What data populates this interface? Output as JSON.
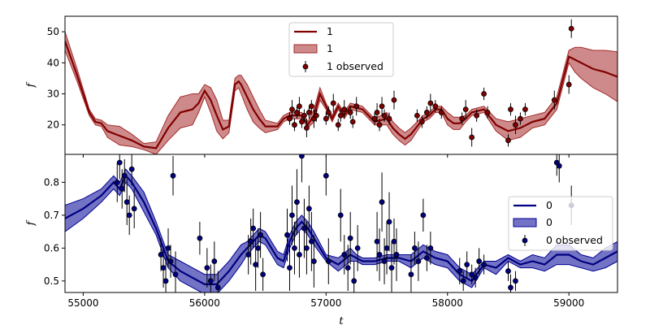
{
  "chart_data": [
    {
      "type": "line",
      "panel": "top",
      "color": "#800000",
      "band_color": "#a52a2a",
      "ylabel": "f",
      "xlabel": "",
      "xlim": [
        54850,
        59400
      ],
      "ylim": [
        10.5,
        55
      ],
      "yticks": [
        20,
        30,
        40,
        50
      ],
      "legend": {
        "placement": "top-center",
        "entries": [
          "1",
          "1",
          "1 observed"
        ]
      },
      "model": {
        "x": [
          54850,
          54950,
          55050,
          55100,
          55150,
          55200,
          55300,
          55400,
          55500,
          55600,
          55700,
          55800,
          55900,
          55950,
          56000,
          56050,
          56100,
          56150,
          56200,
          56250,
          56280,
          56300,
          56350,
          56400,
          56450,
          56500,
          56600,
          56650,
          56700,
          56800,
          56850,
          56900,
          56950,
          57000,
          57050,
          57100,
          57150,
          57200,
          57300,
          57400,
          57500,
          57550,
          57600,
          57650,
          57700,
          57800,
          57850,
          57900,
          57950,
          58000,
          58050,
          58100,
          58150,
          58200,
          58300,
          58400,
          58500,
          58600,
          58700,
          58800,
          58900,
          59000,
          59050,
          59100,
          59200,
          59300,
          59400
        ],
        "y": [
          47,
          36,
          24,
          21,
          20.5,
          18,
          16.5,
          15,
          13,
          12.5,
          19,
          24,
          25,
          27,
          31,
          28,
          23,
          18.5,
          19.5,
          33,
          34,
          33,
          29,
          25,
          22,
          19.5,
          19.5,
          22,
          23,
          23,
          20,
          23,
          30,
          26,
          22,
          26,
          23,
          26,
          25,
          21,
          22,
          19,
          17,
          15.5,
          17,
          22,
          23,
          25,
          25,
          22,
          20.5,
          20.5,
          22,
          24,
          25,
          20,
          18,
          19,
          21,
          22,
          27,
          42,
          41,
          40,
          38,
          37,
          35.5
        ],
        "band": [
          3,
          2,
          1,
          1,
          1,
          2,
          3,
          2,
          1,
          2,
          4,
          5,
          5,
          3,
          2,
          4,
          5,
          3,
          2,
          2,
          2,
          3,
          4,
          4,
          3,
          2,
          1,
          1,
          1,
          1,
          1,
          2,
          2,
          1,
          1,
          1,
          1,
          1,
          1,
          1,
          2,
          2,
          2,
          2,
          2,
          1,
          1,
          1,
          1,
          2,
          2,
          2,
          1,
          1,
          1,
          2,
          3,
          3,
          2,
          2,
          2,
          2,
          4,
          5,
          6,
          7,
          8
        ]
      },
      "observed": {
        "x": [
          56700,
          56720,
          56740,
          56760,
          56780,
          56800,
          56820,
          56840,
          56860,
          56880,
          56900,
          56920,
          57000,
          57020,
          57060,
          57100,
          57120,
          57150,
          57200,
          57220,
          57250,
          57400,
          57420,
          57440,
          57460,
          57480,
          57520,
          57560,
          57750,
          57790,
          57830,
          57860,
          57900,
          57950,
          58120,
          58150,
          58200,
          58240,
          58300,
          58330,
          58500,
          58520,
          58560,
          58600,
          58640,
          58880,
          59000,
          59020
        ],
        "y": [
          22,
          25,
          20,
          24,
          26,
          21,
          23,
          19,
          24,
          26,
          22,
          23,
          22,
          24,
          27,
          20,
          23,
          25,
          24,
          21,
          26,
          22,
          24,
          20,
          26,
          23,
          22,
          28,
          23,
          21,
          24,
          27,
          26,
          24,
          22,
          25,
          16,
          23,
          30,
          24,
          15,
          25,
          20,
          22,
          25,
          28,
          33,
          51
        ],
        "err": [
          2,
          3,
          2,
          2,
          3,
          2,
          2,
          3,
          2,
          2,
          3,
          2,
          2,
          2,
          3,
          2,
          2,
          3,
          2,
          2,
          3,
          2,
          3,
          2,
          3,
          2,
          2,
          3,
          2,
          2,
          2,
          3,
          2,
          2,
          2,
          3,
          3,
          2,
          2,
          2,
          2,
          2,
          3,
          2,
          2,
          3,
          3,
          3
        ]
      }
    },
    {
      "type": "line",
      "panel": "bottom",
      "color": "#000080",
      "band_color": "#000096",
      "ylabel": "f",
      "xlabel": "t",
      "xlim": [
        54850,
        59400
      ],
      "ylim": [
        0.465,
        0.885
      ],
      "yticks": [
        0.5,
        0.6,
        0.7,
        0.8
      ],
      "xticks": [
        55000,
        56000,
        57000,
        58000,
        59000
      ],
      "legend": {
        "placement": "center-right",
        "entries": [
          "0",
          "0",
          "0 observed"
        ]
      },
      "model": {
        "x": [
          54850,
          55000,
          55150,
          55250,
          55300,
          55350,
          55400,
          55500,
          55600,
          55700,
          55800,
          55900,
          56000,
          56100,
          56200,
          56300,
          56350,
          56400,
          56450,
          56500,
          56600,
          56650,
          56700,
          56750,
          56800,
          56850,
          56900,
          57000,
          57100,
          57200,
          57250,
          57300,
          57400,
          57500,
          57600,
          57700,
          57800,
          57900,
          58000,
          58100,
          58150,
          58200,
          58300,
          58400,
          58500,
          58600,
          58700,
          58800,
          58900,
          59000,
          59100,
          59200,
          59300,
          59400
        ],
        "y": [
          0.69,
          0.72,
          0.76,
          0.8,
          0.78,
          0.82,
          0.8,
          0.74,
          0.66,
          0.56,
          0.53,
          0.51,
          0.49,
          0.49,
          0.53,
          0.58,
          0.6,
          0.62,
          0.64,
          0.63,
          0.57,
          0.56,
          0.62,
          0.66,
          0.68,
          0.66,
          0.63,
          0.57,
          0.55,
          0.58,
          0.57,
          0.56,
          0.56,
          0.57,
          0.57,
          0.56,
          0.59,
          0.57,
          0.56,
          0.52,
          0.51,
          0.5,
          0.55,
          0.54,
          0.57,
          0.55,
          0.56,
          0.55,
          0.58,
          0.58,
          0.56,
          0.55,
          0.57,
          0.59
        ],
        "band": [
          0.04,
          0.03,
          0.02,
          0.02,
          0.02,
          0.02,
          0.02,
          0.03,
          0.02,
          0.02,
          0.03,
          0.03,
          0.03,
          0.03,
          0.03,
          0.03,
          0.02,
          0.02,
          0.02,
          0.02,
          0.02,
          0.02,
          0.02,
          0.02,
          0.02,
          0.02,
          0.02,
          0.01,
          0.02,
          0.02,
          0.01,
          0.01,
          0.01,
          0.01,
          0.01,
          0.02,
          0.02,
          0.02,
          0.02,
          0.02,
          0.02,
          0.02,
          0.01,
          0.02,
          0.01,
          0.01,
          0.02,
          0.02,
          0.03,
          0.03,
          0.02,
          0.02,
          0.03,
          0.03
        ]
      },
      "observed": {
        "x": [
          55280,
          55300,
          55320,
          55340,
          55360,
          55380,
          55400,
          55420,
          55640,
          55660,
          55680,
          55700,
          55720,
          55740,
          55760,
          55960,
          56020,
          56050,
          56080,
          56110,
          56360,
          56380,
          56400,
          56420,
          56440,
          56460,
          56480,
          56680,
          56700,
          56720,
          56740,
          56760,
          56780,
          56800,
          56820,
          56840,
          56860,
          56880,
          56900,
          57000,
          57020,
          57120,
          57150,
          57180,
          57200,
          57230,
          57260,
          57420,
          57440,
          57460,
          57480,
          57500,
          57520,
          57540,
          57560,
          57580,
          57700,
          57730,
          57760,
          57800,
          57830,
          57860,
          58100,
          58130,
          58160,
          58200,
          58230,
          58260,
          58300,
          58500,
          58520,
          58560,
          58900,
          58920,
          59020
        ],
        "y": [
          0.8,
          0.86,
          0.78,
          0.82,
          0.74,
          0.7,
          0.84,
          0.72,
          0.58,
          0.54,
          0.5,
          0.6,
          0.56,
          0.82,
          0.52,
          0.63,
          0.54,
          0.5,
          0.56,
          0.48,
          0.58,
          0.62,
          0.66,
          0.55,
          0.6,
          0.64,
          0.52,
          0.64,
          0.54,
          0.7,
          0.6,
          0.74,
          0.58,
          0.88,
          0.66,
          0.6,
          0.72,
          0.62,
          0.56,
          0.82,
          0.56,
          0.7,
          0.58,
          0.54,
          0.63,
          0.5,
          0.6,
          0.62,
          0.58,
          0.74,
          0.56,
          0.6,
          0.68,
          0.54,
          0.62,
          0.58,
          0.52,
          0.6,
          0.56,
          0.7,
          0.57,
          0.6,
          0.53,
          0.5,
          0.55,
          0.52,
          0.51,
          0.56,
          0.55,
          0.53,
          0.48,
          0.5,
          0.86,
          0.85,
          0.73
        ],
        "err": [
          0.06,
          0.05,
          0.06,
          0.05,
          0.07,
          0.06,
          0.05,
          0.06,
          0.05,
          0.06,
          0.07,
          0.06,
          0.05,
          0.06,
          0.07,
          0.05,
          0.06,
          0.05,
          0.06,
          0.05,
          0.06,
          0.07,
          0.06,
          0.08,
          0.06,
          0.07,
          0.05,
          0.08,
          0.07,
          0.09,
          0.08,
          0.1,
          0.07,
          0.08,
          0.09,
          0.08,
          0.07,
          0.09,
          0.08,
          0.06,
          0.07,
          0.08,
          0.06,
          0.07,
          0.08,
          0.06,
          0.07,
          0.09,
          0.08,
          0.09,
          0.07,
          0.08,
          0.09,
          0.08,
          0.07,
          0.08,
          0.06,
          0.05,
          0.06,
          0.05,
          0.04,
          0.05,
          0.04,
          0.03,
          0.04,
          0.03,
          0.03,
          0.04,
          0.03,
          0.03,
          0.04,
          0.03,
          0.04,
          0.05,
          0.06
        ]
      }
    }
  ]
}
